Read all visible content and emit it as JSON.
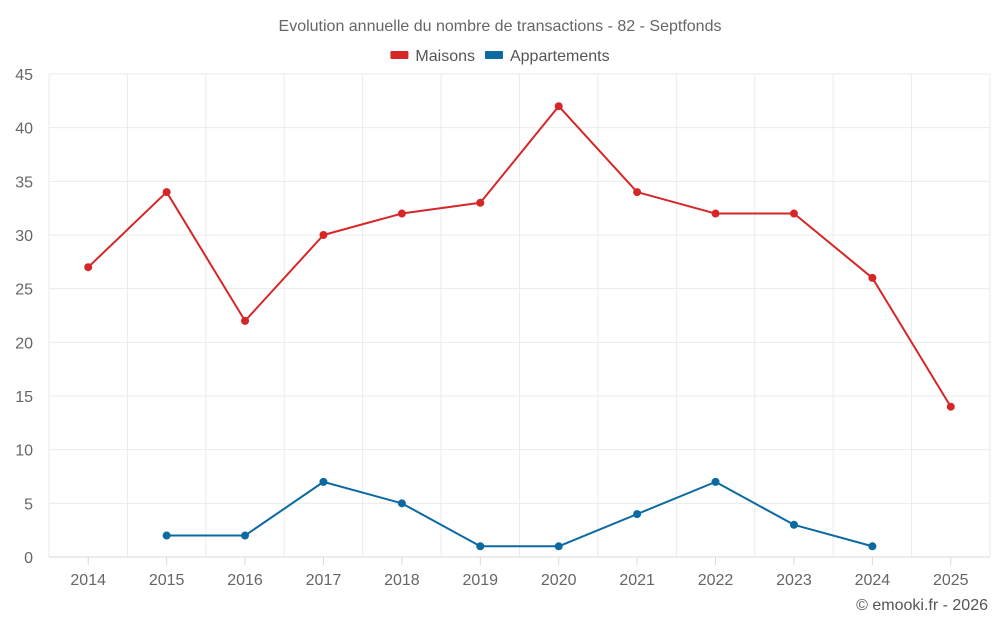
{
  "chart_data": {
    "type": "line",
    "title": "Evolution annuelle du nombre de transactions - 82 - Septfonds",
    "categories": [
      "2014",
      "2015",
      "2016",
      "2017",
      "2018",
      "2019",
      "2020",
      "2021",
      "2022",
      "2023",
      "2024",
      "2025"
    ],
    "series": [
      {
        "name": "Maisons",
        "color": "#d62728",
        "values": [
          27,
          34,
          22,
          30,
          32,
          33,
          42,
          34,
          32,
          32,
          26,
          14
        ]
      },
      {
        "name": "Appartements",
        "color": "#0a6aa1",
        "values": [
          null,
          2,
          2,
          7,
          5,
          1,
          1,
          4,
          7,
          3,
          1,
          null
        ]
      }
    ],
    "ylim": [
      0,
      45
    ],
    "yticks": [
      0,
      5,
      10,
      15,
      20,
      25,
      30,
      35,
      40,
      45
    ],
    "xlabel": "",
    "ylabel": "",
    "grid": true,
    "legend_position": "top-center"
  },
  "credit": "© emooki.fr - 2026"
}
